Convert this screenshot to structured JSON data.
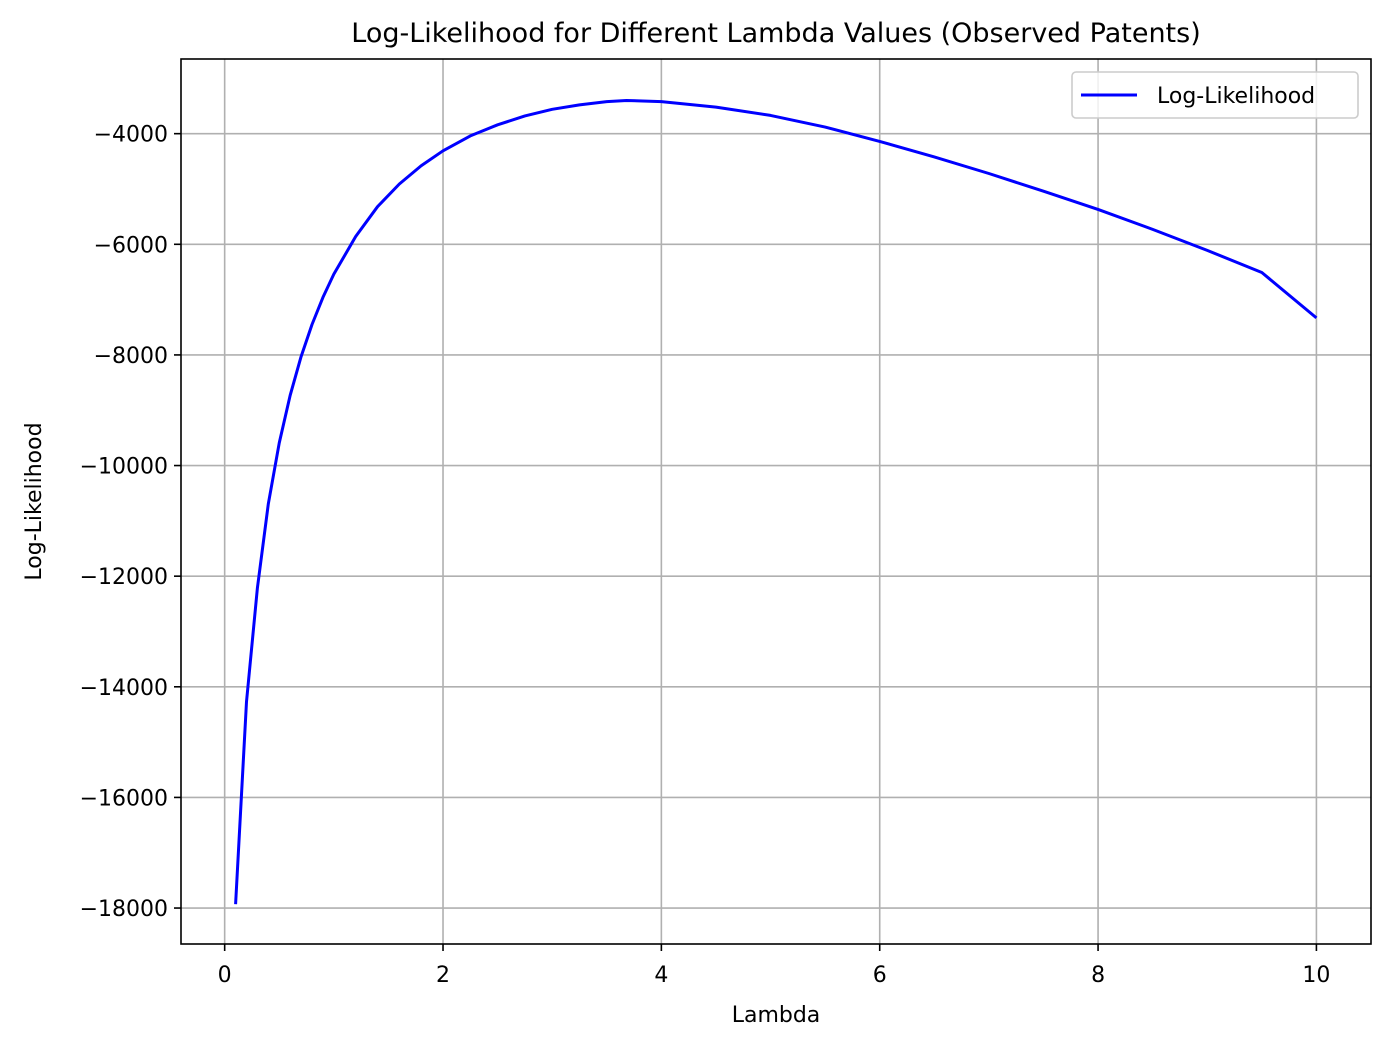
{
  "chart_data": {
    "type": "line",
    "title": "Log-Likelihood for Different Lambda Values (Observed Patents)",
    "xlabel": "Lambda",
    "ylabel": "Log-Likelihood",
    "xlim": [
      -0.4,
      10.5
    ],
    "ylim": [
      -18650,
      -2650
    ],
    "xticks": [
      0,
      2,
      4,
      6,
      8,
      10
    ],
    "xtick_labels": [
      "0",
      "2",
      "4",
      "6",
      "8",
      "10"
    ],
    "yticks": [
      -18000,
      -16000,
      -14000,
      -12000,
      -10000,
      -8000,
      -6000,
      -4000
    ],
    "ytick_labels": [
      "−18000",
      "−16000",
      "−14000",
      "−12000",
      "−10000",
      "−8000",
      "−6000",
      "−4000"
    ],
    "grid": true,
    "legend_position": "top-right",
    "series": [
      {
        "name": "Log-Likelihood",
        "color": "#0000ff",
        "x": [
          0.1,
          0.2,
          0.3,
          0.4,
          0.5,
          0.6,
          0.7,
          0.8,
          0.9,
          1.0,
          1.2,
          1.4,
          1.6,
          1.8,
          2.0,
          2.25,
          2.5,
          2.75,
          3.0,
          3.25,
          3.5,
          3.68,
          4.0,
          4.5,
          5.0,
          5.5,
          6.0,
          6.5,
          7.0,
          7.5,
          8.0,
          8.5,
          9.0,
          9.5,
          10.0
        ],
        "y": [
          -17930,
          -14270,
          -12210,
          -10690,
          -9590,
          -8730,
          -8030,
          -7450,
          -6960,
          -6540,
          -5860,
          -5320,
          -4910,
          -4580,
          -4310,
          -4040,
          -3840,
          -3680,
          -3560,
          -3480,
          -3420,
          -3400,
          -3420,
          -3520,
          -3670,
          -3880,
          -4140,
          -4420,
          -4720,
          -5040,
          -5370,
          -5730,
          -6110,
          -6510,
          -7330
        ]
      }
    ]
  }
}
